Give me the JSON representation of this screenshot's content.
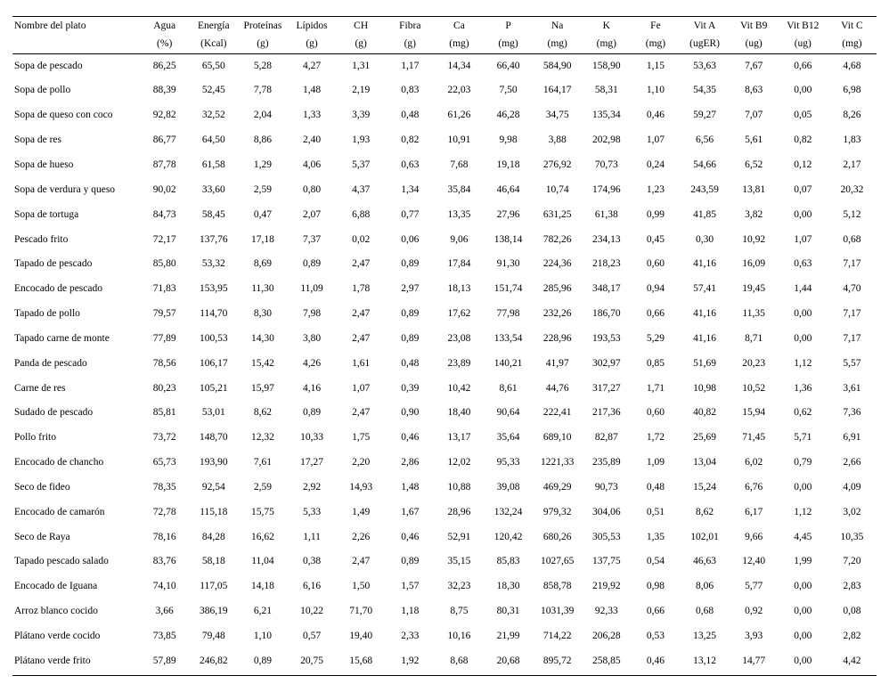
{
  "table": {
    "columns": [
      {
        "key": "dish",
        "label": "Nombre del plato",
        "unit": "",
        "align": "left"
      },
      {
        "key": "agua",
        "label": "Agua",
        "unit": "(%)"
      },
      {
        "key": "energia",
        "label": "Energía",
        "unit": "(Kcal)"
      },
      {
        "key": "proteinas",
        "label": "Proteínas",
        "unit": "(g)"
      },
      {
        "key": "lipidos",
        "label": "Lípidos",
        "unit": "(g)"
      },
      {
        "key": "ch",
        "label": "CH",
        "unit": "(g)"
      },
      {
        "key": "fibra",
        "label": "Fibra",
        "unit": "(g)"
      },
      {
        "key": "ca",
        "label": "Ca",
        "unit": "(mg)"
      },
      {
        "key": "p",
        "label": "P",
        "unit": "(mg)"
      },
      {
        "key": "na",
        "label": "Na",
        "unit": "(mg)"
      },
      {
        "key": "k",
        "label": "K",
        "unit": "(mg)"
      },
      {
        "key": "fe",
        "label": "Fe",
        "unit": "(mg)"
      },
      {
        "key": "vita",
        "label": "Vit A",
        "unit": "(ugER)"
      },
      {
        "key": "vitb9",
        "label": "Vit B9",
        "unit": "(ug)"
      },
      {
        "key": "vitb12",
        "label": "Vit B12",
        "unit": "(ug)"
      },
      {
        "key": "vitc",
        "label": "Vit C",
        "unit": "(mg)"
      }
    ],
    "rows": [
      {
        "dish": "Sopa de pescado",
        "v": [
          "86,25",
          "65,50",
          "5,28",
          "4,27",
          "1,31",
          "1,17",
          "14,34",
          "66,40",
          "584,90",
          "158,90",
          "1,15",
          "53,63",
          "7,67",
          "0,66",
          "4,68"
        ]
      },
      {
        "dish": "Sopa de pollo",
        "v": [
          "88,39",
          "52,45",
          "7,78",
          "1,48",
          "2,19",
          "0,83",
          "22,03",
          "7,50",
          "164,17",
          "58,31",
          "1,10",
          "54,35",
          "8,63",
          "0,00",
          "6,98"
        ]
      },
      {
        "dish": "Sopa de queso con coco",
        "v": [
          "92,82",
          "32,52",
          "2,04",
          "1,33",
          "3,39",
          "0,48",
          "61,26",
          "46,28",
          "34,75",
          "135,34",
          "0,46",
          "59,27",
          "7,07",
          "0,05",
          "8,26"
        ]
      },
      {
        "dish": "Sopa de res",
        "v": [
          "86,77",
          "64,50",
          "8,86",
          "2,40",
          "1,93",
          "0,82",
          "10,91",
          "9,98",
          "3,88",
          "202,98",
          "1,07",
          "6,56",
          "5,61",
          "0,82",
          "1,83"
        ]
      },
      {
        "dish": "Sopa de hueso",
        "v": [
          "87,78",
          "61,58",
          "1,29",
          "4,06",
          "5,37",
          "0,63",
          "7,68",
          "19,18",
          "276,92",
          "70,73",
          "0,24",
          "54,66",
          "6,52",
          "0,12",
          "2,17"
        ]
      },
      {
        "dish": "Sopa de verdura y queso",
        "v": [
          "90,02",
          "33,60",
          "2,59",
          "0,80",
          "4,37",
          "1,34",
          "35,84",
          "46,64",
          "10,74",
          "174,96",
          "1,23",
          "243,59",
          "13,81",
          "0,07",
          "20,32"
        ]
      },
      {
        "dish": "Sopa de tortuga",
        "v": [
          "84,73",
          "58,45",
          "0,47",
          "2,07",
          "6,88",
          "0,77",
          "13,35",
          "27,96",
          "631,25",
          "61,38",
          "0,99",
          "41,85",
          "3,82",
          "0,00",
          "5,12"
        ]
      },
      {
        "dish": "Pescado frito",
        "v": [
          "72,17",
          "137,76",
          "17,18",
          "7,37",
          "0,02",
          "0,06",
          "9,06",
          "138,14",
          "782,26",
          "234,13",
          "0,45",
          "0,30",
          "10,92",
          "1,07",
          "0,68"
        ]
      },
      {
        "dish": "Tapado de pescado",
        "v": [
          "85,80",
          "53,32",
          "8,69",
          "0,89",
          "2,47",
          "0,89",
          "17,84",
          "91,30",
          "224,36",
          "218,23",
          "0,60",
          "41,16",
          "16,09",
          "0,63",
          "7,17"
        ]
      },
      {
        "dish": "Encocado de pescado",
        "v": [
          "71,83",
          "153,95",
          "11,30",
          "11,09",
          "1,78",
          "2,97",
          "18,13",
          "151,74",
          "285,96",
          "348,17",
          "0,94",
          "57,41",
          "19,45",
          "1,44",
          "4,70"
        ]
      },
      {
        "dish": "Tapado de pollo",
        "v": [
          "79,57",
          "114,70",
          "8,30",
          "7,98",
          "2,47",
          "0,89",
          "17,62",
          "77,98",
          "232,26",
          "186,70",
          "0,66",
          "41,16",
          "11,35",
          "0,00",
          "7,17"
        ]
      },
      {
        "dish": "Tapado carne de monte",
        "v": [
          "77,89",
          "100,53",
          "14,30",
          "3,80",
          "2,47",
          "0,89",
          "23,08",
          "133,54",
          "228,96",
          "193,53",
          "5,29",
          "41,16",
          "8,71",
          "0,00",
          "7,17"
        ]
      },
      {
        "dish": "Panda de pescado",
        "v": [
          "78,56",
          "106,17",
          "15,42",
          "4,26",
          "1,61",
          "0,48",
          "23,89",
          "140,21",
          "41,97",
          "302,97",
          "0,85",
          "51,69",
          "20,23",
          "1,12",
          "5,57"
        ]
      },
      {
        "dish": "Carne de res",
        "v": [
          "80,23",
          "105,21",
          "15,97",
          "4,16",
          "1,07",
          "0,39",
          "10,42",
          "8,61",
          "44,76",
          "317,27",
          "1,71",
          "10,98",
          "10,52",
          "1,36",
          "3,61"
        ]
      },
      {
        "dish": "Sudado de pescado",
        "v": [
          "85,81",
          "53,01",
          "8,62",
          "0,89",
          "2,47",
          "0,90",
          "18,40",
          "90,64",
          "222,41",
          "217,36",
          "0,60",
          "40,82",
          "15,94",
          "0,62",
          "7,36"
        ]
      },
      {
        "dish": "Pollo frito",
        "v": [
          "73,72",
          "148,70",
          "12,32",
          "10,33",
          "1,75",
          "0,46",
          "13,17",
          "35,64",
          "689,10",
          "82,87",
          "1,72",
          "25,69",
          "71,45",
          "5,71",
          "6,91"
        ]
      },
      {
        "dish": "Encocado de chancho",
        "v": [
          "65,73",
          "193,90",
          "7,61",
          "17,27",
          "2,20",
          "2,86",
          "12,02",
          "95,33",
          "1221,33",
          "235,89",
          "1,09",
          "13,04",
          "6,02",
          "0,79",
          "2,66"
        ]
      },
      {
        "dish": "Seco de fideo",
        "v": [
          "78,35",
          "92,54",
          "2,59",
          "2,92",
          "14,93",
          "1,48",
          "10,88",
          "39,08",
          "469,29",
          "90,73",
          "0,48",
          "15,24",
          "6,76",
          "0,00",
          "4,09"
        ]
      },
      {
        "dish": "Encocado de camarón",
        "v": [
          "72,78",
          "115,18",
          "15,75",
          "5,33",
          "1,49",
          "1,67",
          "28,96",
          "132,24",
          "979,32",
          "304,06",
          "0,51",
          "8,62",
          "6,17",
          "1,12",
          "3,02"
        ]
      },
      {
        "dish": "Seco de Raya",
        "v": [
          "78,16",
          "84,28",
          "16,62",
          "1,11",
          "2,26",
          "0,46",
          "52,91",
          "120,42",
          "680,26",
          "305,53",
          "1,35",
          "102,01",
          "9,66",
          "4,45",
          "10,35"
        ]
      },
      {
        "dish": "Tapado pescado salado",
        "v": [
          "83,76",
          "58,18",
          "11,04",
          "0,38",
          "2,47",
          "0,89",
          "35,15",
          "85,83",
          "1027,65",
          "137,75",
          "0,54",
          "46,63",
          "12,40",
          "1,99",
          "7,20"
        ]
      },
      {
        "dish": "Encocado de Iguana",
        "v": [
          "74,10",
          "117,05",
          "14,18",
          "6,16",
          "1,50",
          "1,57",
          "32,23",
          "18,30",
          "858,78",
          "219,92",
          "0,98",
          "8,06",
          "5,77",
          "0,00",
          "2,83"
        ]
      },
      {
        "dish": "Arroz blanco cocido",
        "v": [
          "3,66",
          "386,19",
          "6,21",
          "10,22",
          "71,70",
          "1,18",
          "8,75",
          "80,31",
          "1031,39",
          "92,33",
          "0,66",
          "0,68",
          "0,92",
          "0,00",
          "0,08"
        ]
      },
      {
        "dish": "Plátano verde cocido",
        "v": [
          "73,85",
          "79,48",
          "1,10",
          "0,57",
          "19,40",
          "2,33",
          "10,16",
          "21,99",
          "714,22",
          "206,28",
          "0,53",
          "13,25",
          "3,93",
          "0,00",
          "2,82"
        ]
      },
      {
        "dish": "Plátano verde frito",
        "v": [
          "57,89",
          "246,82",
          "0,89",
          "20,75",
          "15,68",
          "1,92",
          "8,68",
          "20,68",
          "895,72",
          "258,85",
          "0,46",
          "13,12",
          "14,77",
          "0,00",
          "4,42"
        ]
      }
    ],
    "style": {
      "font_family": "Times New Roman",
      "font_size_pt": 9,
      "text_color": "#000000",
      "background_color": "#ffffff",
      "rule_color": "#000000",
      "row_line_height": 1.9
    }
  }
}
